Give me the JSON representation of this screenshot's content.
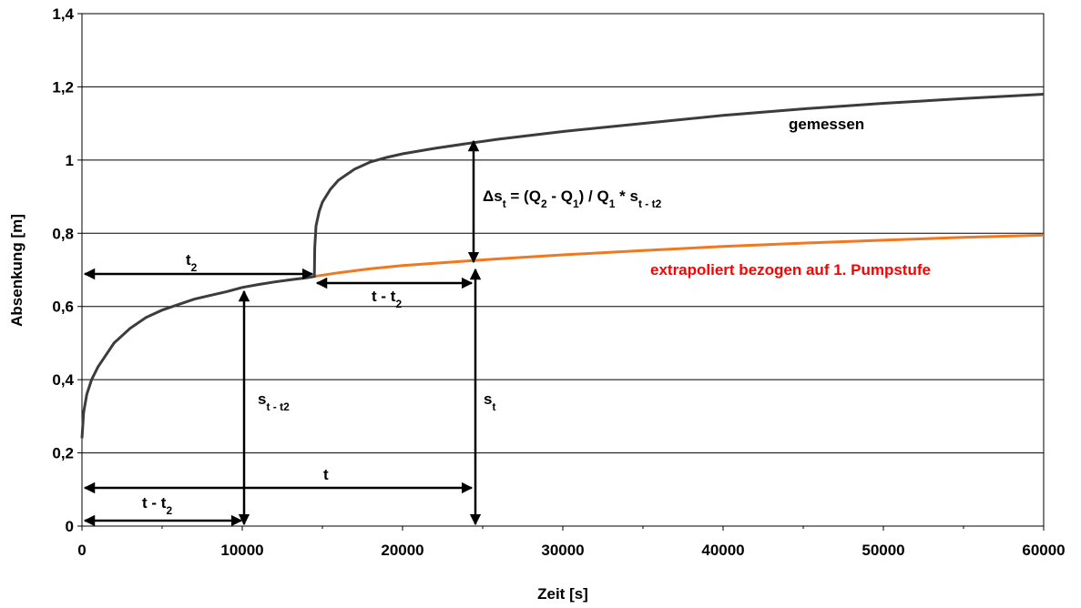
{
  "chart_data": {
    "type": "line",
    "xlabel": "Zeit [s]",
    "ylabel": "Absenkung [m]",
    "xlim": [
      0,
      60000
    ],
    "ylim": [
      0,
      1.4
    ],
    "x_ticks": [
      "0",
      "10000",
      "20000",
      "30000",
      "40000",
      "50000",
      "60000"
    ],
    "y_ticks": [
      "0",
      "0,2",
      "0,4",
      "0,6",
      "0,8",
      "1",
      "1,2",
      "1,4"
    ],
    "grid": "horizontal",
    "series": [
      {
        "name": "gemessen",
        "color": "#3c3c3c",
        "points": [
          [
            0,
            0.24
          ],
          [
            100,
            0.31
          ],
          [
            300,
            0.36
          ],
          [
            600,
            0.4
          ],
          [
            1000,
            0.435
          ],
          [
            2000,
            0.5
          ],
          [
            3000,
            0.54
          ],
          [
            4000,
            0.57
          ],
          [
            5000,
            0.59
          ],
          [
            6000,
            0.605
          ],
          [
            7000,
            0.62
          ],
          [
            8000,
            0.63
          ],
          [
            9000,
            0.64
          ],
          [
            10000,
            0.652
          ],
          [
            11000,
            0.66
          ],
          [
            12000,
            0.667
          ],
          [
            13000,
            0.673
          ],
          [
            14000,
            0.678
          ],
          [
            14500,
            0.682
          ],
          [
            14520,
            0.76
          ],
          [
            14600,
            0.82
          ],
          [
            14800,
            0.86
          ],
          [
            15000,
            0.885
          ],
          [
            15500,
            0.92
          ],
          [
            16000,
            0.945
          ],
          [
            17000,
            0.975
          ],
          [
            18000,
            0.995
          ],
          [
            19000,
            1.007
          ],
          [
            20000,
            1.017
          ],
          [
            22000,
            1.032
          ],
          [
            24000,
            1.045
          ],
          [
            26000,
            1.057
          ],
          [
            30000,
            1.078
          ],
          [
            35000,
            1.1
          ],
          [
            40000,
            1.122
          ],
          [
            45000,
            1.14
          ],
          [
            50000,
            1.155
          ],
          [
            55000,
            1.168
          ],
          [
            60000,
            1.18
          ]
        ]
      },
      {
        "name": "extrapoliert bezogen auf 1. Pumpstufe",
        "color": "#f07820",
        "points": [
          [
            14500,
            0.682
          ],
          [
            16000,
            0.692
          ],
          [
            18000,
            0.703
          ],
          [
            20000,
            0.712
          ],
          [
            22000,
            0.718
          ],
          [
            24000,
            0.724
          ],
          [
            26000,
            0.73
          ],
          [
            30000,
            0.741
          ],
          [
            35000,
            0.753
          ],
          [
            40000,
            0.764
          ],
          [
            45000,
            0.773
          ],
          [
            50000,
            0.781
          ],
          [
            55000,
            0.789
          ],
          [
            60000,
            0.795
          ]
        ]
      }
    ],
    "annotations": {
      "gemessen": "gemessen",
      "extrapoliert": "extrapoliert bezogen auf 1. Pumpstufe",
      "t2": "t",
      "t2_sub": "2",
      "t_minus_t2_upper": "t - t",
      "t_minus_t2_upper_sub": "2",
      "t": "t",
      "t_minus_t2_lower": "t - t",
      "t_minus_t2_lower_sub": "2",
      "s_t_t2": "s",
      "s_t_t2_sub": "t - t2",
      "s_t": "s",
      "s_t_sub": "t",
      "delta_prefix": "Δs",
      "delta_sub1": "t",
      "delta_part1": " = (Q",
      "delta_sub2": "2",
      "delta_part2": " - Q",
      "delta_sub3": "1",
      "delta_part3": ") / Q",
      "delta_sub4": "1",
      "delta_part4": " * s",
      "delta_sub5": "t - t2"
    }
  }
}
